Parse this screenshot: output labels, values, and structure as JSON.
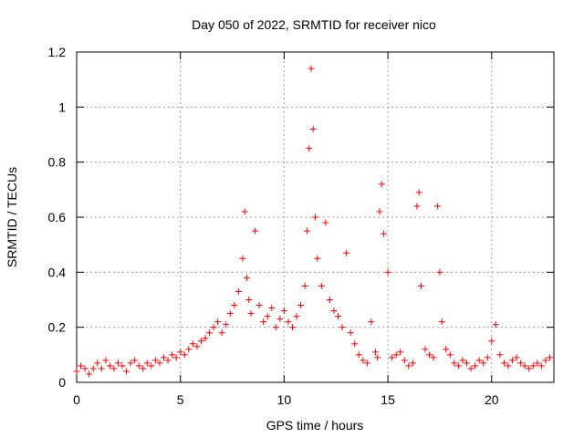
{
  "chart_data": {
    "type": "scatter",
    "title": "Day 050 of 2022, SRMTID for receiver nico",
    "xlabel": "GPS time / hours",
    "ylabel": "SRMTID / TECUs",
    "xlim": [
      0,
      23
    ],
    "ylim": [
      0,
      1.2
    ],
    "xticks": [
      0,
      5,
      10,
      15,
      20
    ],
    "xtick_labels": [
      "0",
      "5",
      "10",
      "15",
      "20"
    ],
    "yticks": [
      0,
      0.2,
      0.4,
      0.6,
      0.8,
      1.0,
      1.2
    ],
    "ytick_labels": [
      "0",
      "0.2",
      "0.4",
      "0.6",
      "0.8",
      "1",
      "1.2"
    ],
    "grid": true,
    "marker": "+",
    "series": [
      {
        "name": "SRMTID",
        "color": "#ff0000",
        "x": [
          0.0,
          0.2,
          0.4,
          0.6,
          0.8,
          1.0,
          1.2,
          1.4,
          1.6,
          1.8,
          2.0,
          2.2,
          2.4,
          2.6,
          2.8,
          3.0,
          3.2,
          3.4,
          3.6,
          3.8,
          4.0,
          4.2,
          4.4,
          4.6,
          4.8,
          5.0,
          5.2,
          5.4,
          5.6,
          5.8,
          6.0,
          6.2,
          6.4,
          6.6,
          6.8,
          7.0,
          7.2,
          7.4,
          7.6,
          7.8,
          8.0,
          8.1,
          8.2,
          8.3,
          8.4,
          8.6,
          8.8,
          9.0,
          9.2,
          9.4,
          9.6,
          9.8,
          10.0,
          10.2,
          10.4,
          10.6,
          10.8,
          11.0,
          11.1,
          11.2,
          11.3,
          11.4,
          11.5,
          11.6,
          11.8,
          12.0,
          12.2,
          12.4,
          12.6,
          12.8,
          13.0,
          13.2,
          13.4,
          13.6,
          13.8,
          14.0,
          14.2,
          14.4,
          14.5,
          14.6,
          14.7,
          14.8,
          15.0,
          15.2,
          15.4,
          15.6,
          15.8,
          16.0,
          16.2,
          16.4,
          16.5,
          16.6,
          16.8,
          17.0,
          17.2,
          17.4,
          17.5,
          17.6,
          17.8,
          18.0,
          18.2,
          18.4,
          18.6,
          18.8,
          19.0,
          19.2,
          19.4,
          19.6,
          19.8,
          20.0,
          20.2,
          20.4,
          20.6,
          20.8,
          21.0,
          21.2,
          21.4,
          21.6,
          21.8,
          22.0,
          22.2,
          22.4,
          22.6,
          22.8
        ],
        "y": [
          0.04,
          0.06,
          0.05,
          0.03,
          0.05,
          0.07,
          0.05,
          0.08,
          0.06,
          0.05,
          0.07,
          0.06,
          0.04,
          0.07,
          0.08,
          0.06,
          0.05,
          0.07,
          0.06,
          0.08,
          0.07,
          0.09,
          0.08,
          0.1,
          0.09,
          0.11,
          0.1,
          0.12,
          0.14,
          0.13,
          0.15,
          0.16,
          0.18,
          0.2,
          0.22,
          0.18,
          0.21,
          0.25,
          0.28,
          0.33,
          0.45,
          0.62,
          0.38,
          0.3,
          0.25,
          0.55,
          0.28,
          0.22,
          0.24,
          0.27,
          0.2,
          0.23,
          0.26,
          0.22,
          0.2,
          0.24,
          0.28,
          0.35,
          0.55,
          0.85,
          1.14,
          0.92,
          0.6,
          0.45,
          0.35,
          0.58,
          0.3,
          0.26,
          0.24,
          0.2,
          0.47,
          0.18,
          0.14,
          0.1,
          0.08,
          0.07,
          0.22,
          0.11,
          0.09,
          0.62,
          0.72,
          0.54,
          0.4,
          0.09,
          0.1,
          0.11,
          0.08,
          0.06,
          0.07,
          0.64,
          0.69,
          0.35,
          0.12,
          0.1,
          0.09,
          0.64,
          0.4,
          0.22,
          0.12,
          0.1,
          0.07,
          0.06,
          0.08,
          0.07,
          0.05,
          0.06,
          0.08,
          0.07,
          0.09,
          0.15,
          0.21,
          0.1,
          0.07,
          0.06,
          0.08,
          0.09,
          0.07,
          0.06,
          0.05,
          0.06,
          0.07,
          0.06,
          0.08,
          0.09
        ]
      }
    ]
  }
}
